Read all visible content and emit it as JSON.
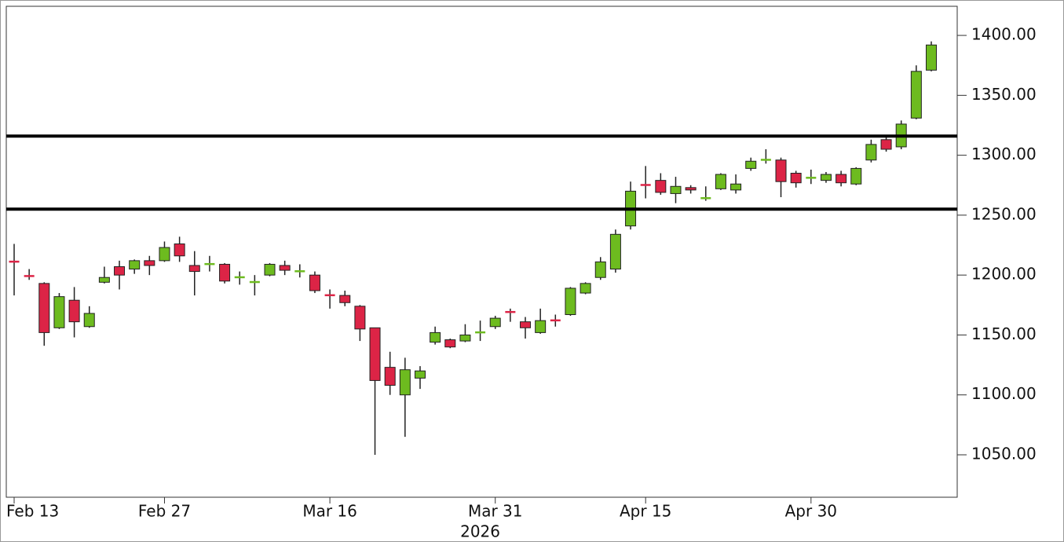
{
  "chart_data": {
    "type": "candlestick",
    "categories": [
      "Feb 13",
      null,
      null,
      null,
      null,
      null,
      null,
      null,
      null,
      null,
      "Feb 27",
      null,
      null,
      null,
      null,
      null,
      null,
      null,
      null,
      null,
      null,
      "Mar 16",
      null,
      null,
      null,
      null,
      null,
      null,
      null,
      null,
      null,
      null,
      "Mar 31",
      null,
      null,
      null,
      null,
      null,
      null,
      null,
      null,
      null,
      "Apr 15",
      null,
      null,
      null,
      null,
      null,
      null,
      null,
      null,
      null,
      null,
      "Apr 30",
      null,
      null,
      null,
      null,
      null,
      null,
      null,
      null
    ],
    "x_sublabel": "2026",
    "up_color": "#6dbb1f",
    "down_color": "#dc2446",
    "series": [
      {
        "open": [
          1212,
          1200,
          1193,
          1156,
          1179,
          1157,
          1194,
          1207,
          1205,
          1212,
          1212,
          1226,
          1208,
          1209,
          1209,
          1198,
          1194,
          1200,
          1208,
          1203,
          1200,
          1184,
          1183,
          1174,
          1156,
          1123,
          1100,
          1114,
          1144,
          1146,
          1145,
          1152,
          1157,
          1170,
          1161,
          1152,
          1163,
          1167,
          1185,
          1198,
          1205,
          1241,
          1276,
          1279,
          1268,
          1273,
          1264,
          1272,
          1271,
          1289,
          1296,
          1296,
          1285,
          1281,
          1279,
          1284,
          1276,
          1296,
          1313,
          1307,
          1331,
          1371
        ],
        "high": [
          1226,
          1205,
          1194,
          1185,
          1190,
          1174,
          1207,
          1212,
          1213,
          1216,
          1228,
          1232,
          1220,
          1216,
          1210,
          1203,
          1200,
          1210,
          1212,
          1209,
          1203,
          1188,
          1187,
          1175,
          1156,
          1136,
          1131,
          1124,
          1157,
          1147,
          1159,
          1162,
          1166,
          1172,
          1165,
          1172,
          1167,
          1190,
          1194,
          1215,
          1238,
          1278,
          1291,
          1285,
          1282,
          1275,
          1274,
          1285,
          1284,
          1298,
          1305,
          1298,
          1287,
          1288,
          1286,
          1287,
          1290,
          1313,
          1316,
          1329,
          1375,
          1395
        ],
        "low": [
          1183,
          1196,
          1141,
          1155,
          1148,
          1156,
          1193,
          1188,
          1201,
          1200,
          1211,
          1211,
          1183,
          1203,
          1193,
          1192,
          1183,
          1199,
          1200,
          1198,
          1185,
          1172,
          1174,
          1145,
          1050,
          1100,
          1065,
          1105,
          1142,
          1139,
          1144,
          1145,
          1155,
          1161,
          1147,
          1151,
          1157,
          1166,
          1184,
          1196,
          1202,
          1238,
          1264,
          1267,
          1260,
          1268,
          1262,
          1271,
          1268,
          1287,
          1293,
          1265,
          1273,
          1276,
          1277,
          1274,
          1275,
          1294,
          1303,
          1305,
          1330,
          1370
        ],
        "close": [
          1211,
          1199,
          1152,
          1182,
          1161,
          1168,
          1198,
          1200,
          1212,
          1208,
          1223,
          1216,
          1203,
          1210,
          1195,
          1199,
          1195,
          1209,
          1204,
          1204,
          1187,
          1183,
          1177,
          1155,
          1112,
          1108,
          1121,
          1120,
          1152,
          1140,
          1150,
          1153,
          1164,
          1169,
          1156,
          1162,
          1162,
          1189,
          1193,
          1211,
          1234,
          1270,
          1275,
          1269,
          1274,
          1271,
          1265,
          1284,
          1276,
          1295,
          1297,
          1278,
          1277,
          1282,
          1284,
          1277,
          1289,
          1309,
          1305,
          1326,
          1370,
          1392
        ]
      }
    ],
    "hlines": [
      1316,
      1255
    ],
    "hline_color": "#000000",
    "ylim": [
      1014.6,
      1424.3
    ],
    "yticks": [
      {
        "value": 1050,
        "label": "1050.00"
      },
      {
        "value": 1100,
        "label": "1100.00"
      },
      {
        "value": 1150,
        "label": "1150.00"
      },
      {
        "value": 1200,
        "label": "1200.00"
      },
      {
        "value": 1250,
        "label": "1250.00"
      },
      {
        "value": 1300,
        "label": "1300.00"
      },
      {
        "value": 1350,
        "label": "1350.00"
      },
      {
        "value": 1400,
        "label": "1400.00"
      }
    ]
  }
}
